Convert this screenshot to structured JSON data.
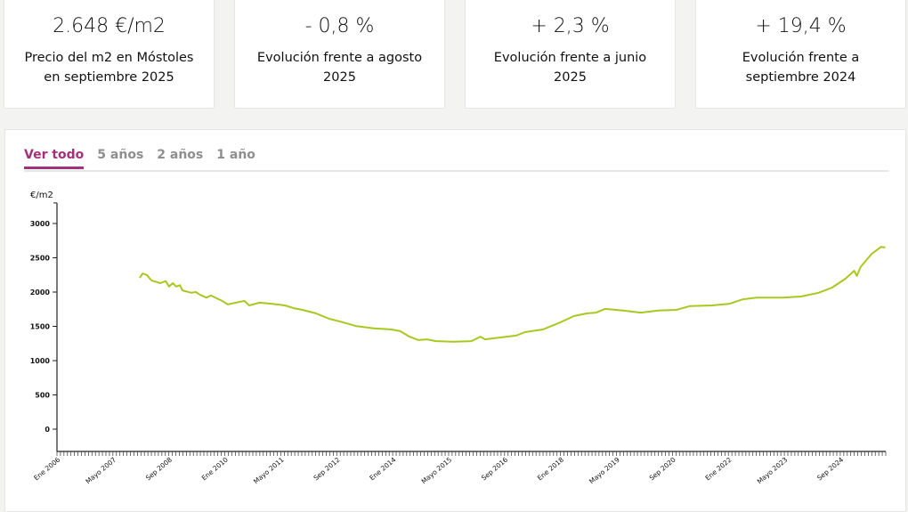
{
  "kpis": [
    {
      "value": "2.648 €/m2",
      "label": "Precio del m2 en Móstoles en septiembre 2025"
    },
    {
      "value": "- 0,8 %",
      "label": "Evolución frente a agosto 2025"
    },
    {
      "value": "+ 2,3 %",
      "label": "Evolución frente a junio 2025"
    },
    {
      "value": "+ 19,4 %",
      "label": "Evolución frente a septiembre 2024"
    }
  ],
  "tabs": [
    {
      "label": "Ver todo",
      "active": true
    },
    {
      "label": "5 años"
    },
    {
      "label": "2 años"
    },
    {
      "label": "1 año"
    }
  ],
  "colors": {
    "line": "#a8c820",
    "accent": "#a4307c"
  },
  "chart_data": {
    "type": "line",
    "ylabel": "€/m2",
    "ylim": [
      0,
      3300
    ],
    "yticks": [
      0,
      500,
      1000,
      1500,
      2000,
      2500,
      3000
    ],
    "xlim": [
      2006.0,
      2025.75
    ],
    "xticks": [
      {
        "t": 2006.0,
        "label": "Ene 2006"
      },
      {
        "t": 2007.333,
        "label": "Mayo 2007"
      },
      {
        "t": 2008.667,
        "label": "Sep 2008"
      },
      {
        "t": 2010.0,
        "label": "Ene 2010"
      },
      {
        "t": 2011.333,
        "label": "Mayo 2011"
      },
      {
        "t": 2012.667,
        "label": "Sep 2012"
      },
      {
        "t": 2014.0,
        "label": "Ene 2014"
      },
      {
        "t": 2015.333,
        "label": "Mayo 2015"
      },
      {
        "t": 2016.667,
        "label": "Sep 2016"
      },
      {
        "t": 2018.0,
        "label": "Ene 2018"
      },
      {
        "t": 2019.333,
        "label": "Mayo 2019"
      },
      {
        "t": 2020.667,
        "label": "Sep 2020"
      },
      {
        "t": 2022.0,
        "label": "Ene 2022"
      },
      {
        "t": 2023.333,
        "label": "Mayo 2023"
      },
      {
        "t": 2024.667,
        "label": "Sep 2024"
      }
    ],
    "series": [
      {
        "name": "Precio m2",
        "points": [
          [
            2007.97,
            2208
          ],
          [
            2008.04,
            2270
          ],
          [
            2008.14,
            2250
          ],
          [
            2008.25,
            2170
          ],
          [
            2008.46,
            2130
          ],
          [
            2008.59,
            2160
          ],
          [
            2008.67,
            2080
          ],
          [
            2008.76,
            2130
          ],
          [
            2008.84,
            2080
          ],
          [
            2008.93,
            2100
          ],
          [
            2008.99,
            2025
          ],
          [
            2009.2,
            1990
          ],
          [
            2009.31,
            2000
          ],
          [
            2009.41,
            1960
          ],
          [
            2009.56,
            1920
          ],
          [
            2009.67,
            1950
          ],
          [
            2009.94,
            1870
          ],
          [
            2010.07,
            1820
          ],
          [
            2010.37,
            1860
          ],
          [
            2010.47,
            1870
          ],
          [
            2010.58,
            1805
          ],
          [
            2010.83,
            1845
          ],
          [
            2011.11,
            1830
          ],
          [
            2011.43,
            1805
          ],
          [
            2011.64,
            1765
          ],
          [
            2011.85,
            1740
          ],
          [
            2012.17,
            1690
          ],
          [
            2012.49,
            1610
          ],
          [
            2012.81,
            1560
          ],
          [
            2013.12,
            1505
          ],
          [
            2013.55,
            1470
          ],
          [
            2013.97,
            1455
          ],
          [
            2014.18,
            1430
          ],
          [
            2014.4,
            1350
          ],
          [
            2014.61,
            1300
          ],
          [
            2014.82,
            1310
          ],
          [
            2015.03,
            1285
          ],
          [
            2015.46,
            1275
          ],
          [
            2015.88,
            1285
          ],
          [
            2016.09,
            1350
          ],
          [
            2016.2,
            1310
          ],
          [
            2016.52,
            1335
          ],
          [
            2016.94,
            1365
          ],
          [
            2017.15,
            1415
          ],
          [
            2017.58,
            1455
          ],
          [
            2018.0,
            1560
          ],
          [
            2018.32,
            1650
          ],
          [
            2018.64,
            1690
          ],
          [
            2018.85,
            1700
          ],
          [
            2019.06,
            1755
          ],
          [
            2019.49,
            1730
          ],
          [
            2019.91,
            1700
          ],
          [
            2020.33,
            1730
          ],
          [
            2020.76,
            1740
          ],
          [
            2021.08,
            1795
          ],
          [
            2021.61,
            1805
          ],
          [
            2022.03,
            1830
          ],
          [
            2022.35,
            1895
          ],
          [
            2022.67,
            1920
          ],
          [
            2023.3,
            1920
          ],
          [
            2023.73,
            1935
          ],
          [
            2024.15,
            1990
          ],
          [
            2024.47,
            2065
          ],
          [
            2024.79,
            2195
          ],
          [
            2025.0,
            2310
          ],
          [
            2025.06,
            2235
          ],
          [
            2025.15,
            2365
          ],
          [
            2025.42,
            2560
          ],
          [
            2025.64,
            2660
          ],
          [
            2025.74,
            2650
          ]
        ]
      }
    ]
  }
}
